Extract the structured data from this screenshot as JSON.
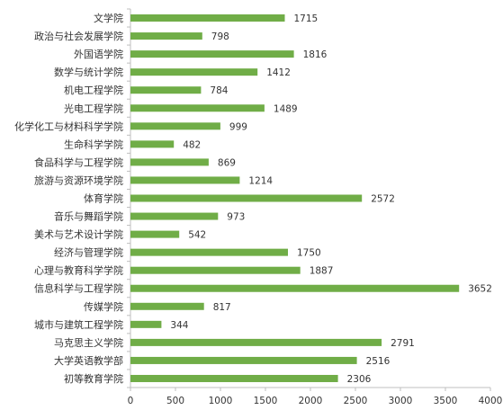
{
  "chart_data": {
    "type": "bar",
    "orientation": "horizontal",
    "title": "",
    "xlabel": "",
    "ylabel": "",
    "categories": [
      "文学院",
      "政治与社会发展学院",
      "外国语学院",
      "数学与统计学院",
      "机电工程学院",
      "光电工程学院",
      "化学化工与材料科学学院",
      "生命科学学院",
      "食品科学与工程学院",
      "旅游与资源环境学院",
      "体育学院",
      "音乐与舞蹈学院",
      "美术与艺术设计学院",
      "经济与管理学院",
      "心理与教育科学学院",
      "信息科学与工程学院",
      "传媒学院",
      "城市与建筑工程学院",
      "马克思主义学院",
      "大学英语教学部",
      "初等教育学院"
    ],
    "values": [
      1715,
      798,
      1816,
      1412,
      784,
      1489,
      999,
      482,
      869,
      1214,
      2572,
      973,
      542,
      1750,
      1887,
      3652,
      817,
      344,
      2791,
      2516,
      2306
    ],
    "xlim": [
      0,
      4000
    ],
    "xticks": [
      0,
      500,
      1000,
      1500,
      2000,
      2500,
      3000,
      3500,
      4000
    ],
    "grid": false,
    "legend": "none",
    "data_labels": true,
    "colors": {
      "bar": "#70ad47",
      "axis": "#bfbfbf",
      "text": "#333333"
    }
  }
}
